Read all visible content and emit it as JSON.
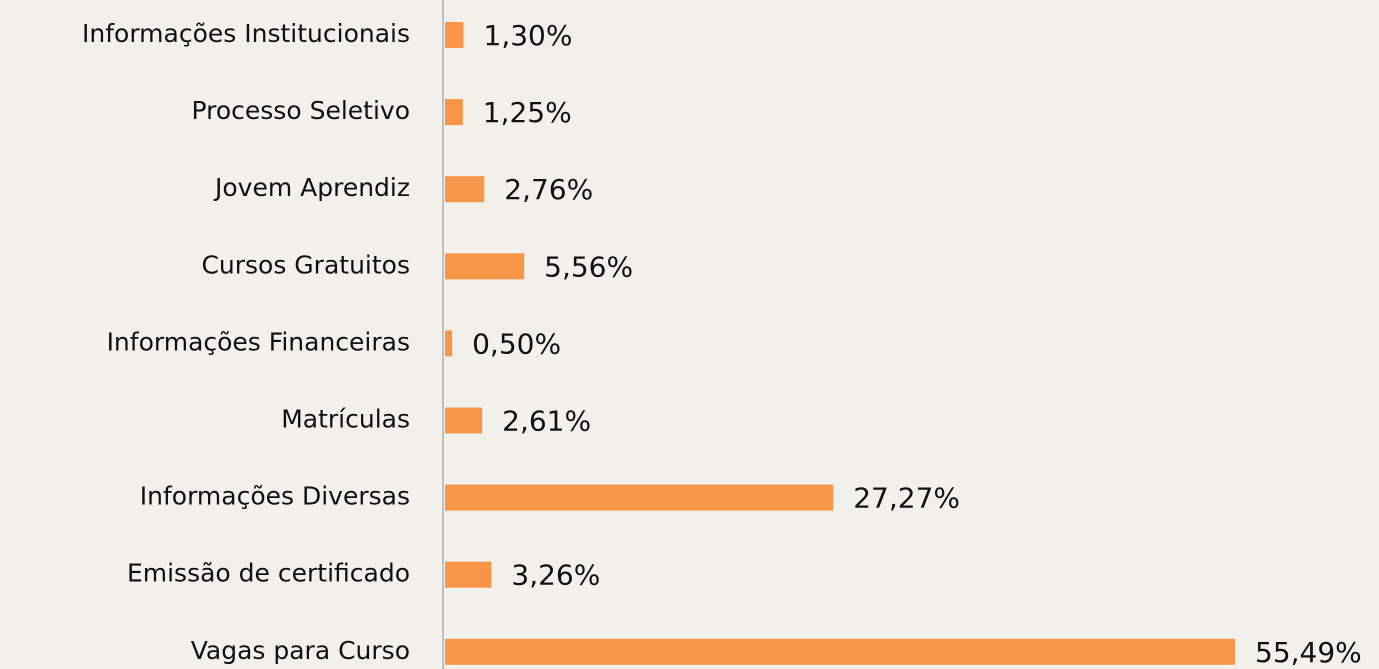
{
  "chart_data": {
    "type": "bar",
    "orientation": "horizontal",
    "categories": [
      "Informações Institucionais",
      "Processo Seletivo",
      "Jovem Aprendiz",
      "Cursos Gratuitos",
      "Informações Financeiras",
      "Matrículas",
      "Informações Diversas",
      "Emissão de certificado",
      "Vagas para Curso"
    ],
    "values": [
      1.3,
      1.25,
      2.76,
      5.56,
      0.5,
      2.61,
      27.27,
      3.26,
      55.49
    ],
    "value_labels": [
      "1,30%",
      "1,25%",
      "2,76%",
      "5,56%",
      "0,50%",
      "2,61%",
      "27,27%",
      "3,26%",
      "55,49%"
    ],
    "color": "#f79646"
  }
}
